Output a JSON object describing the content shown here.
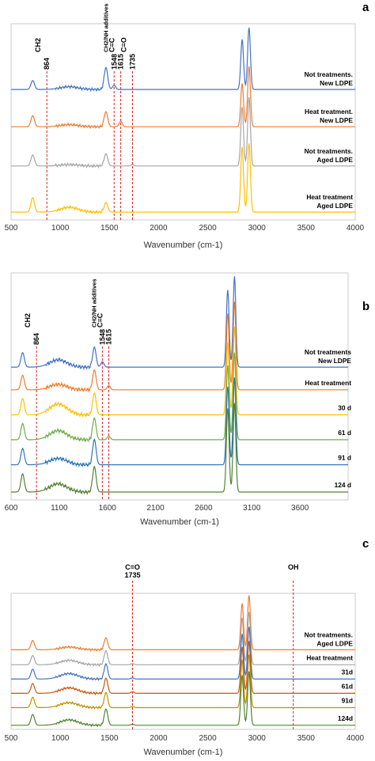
{
  "chart_data": [
    {
      "panel": "a",
      "type": "line",
      "xlabel": "Wavenumber (cm-1)",
      "ylabel": "",
      "xlim": [
        500,
        4000
      ],
      "x_ticks": [
        "500",
        "1000",
        "1500",
        "2000",
        "2500",
        "3000",
        "3500",
        "4000"
      ],
      "grid": false,
      "annotations": [
        {
          "wavenumber": 864,
          "labels": [
            "864",
            "CH2"
          ]
        },
        {
          "wavenumber": 1548,
          "labels": [
            "1548",
            "CH2/NH additives"
          ]
        },
        {
          "wavenumber": 1615,
          "labels": [
            "1615",
            "C=C"
          ]
        },
        {
          "wavenumber": 1735,
          "labels": [
            "1735",
            "C=O"
          ]
        }
      ],
      "series": [
        {
          "name": "Not treatments. New LDPE",
          "label_lines": [
            "Not treatments.",
            "New LDPE"
          ],
          "color": "#4472c4",
          "baseline_frac": 0.665,
          "peaks": [
            [
              720,
              0.13
            ],
            [
              1090,
              0.04
            ],
            [
              1465,
              0.32
            ],
            [
              1548,
              0.06
            ],
            [
              2850,
              0.73
            ],
            [
              2920,
              0.9
            ]
          ]
        },
        {
          "name": "Heat treatment. New LDPE",
          "label_lines": [
            "Heat treatment.",
            "New LDPE"
          ],
          "color": "#ed7d31",
          "baseline_frac": 0.475,
          "peaks": [
            [
              720,
              0.16
            ],
            [
              1090,
              0.03
            ],
            [
              1465,
              0.22
            ],
            [
              1615,
              0.08
            ],
            [
              2850,
              0.63
            ],
            [
              2920,
              0.88
            ]
          ]
        },
        {
          "name": "Not treatments. Aged LDPE",
          "label_lines": [
            "Not treatments.",
            "Aged LDPE"
          ],
          "color": "#a5a5a5",
          "baseline_frac": 0.275,
          "peaks": [
            [
              720,
              0.16
            ],
            [
              1090,
              0.02
            ],
            [
              1465,
              0.18
            ],
            [
              1735,
              0.02
            ],
            [
              2850,
              0.86
            ],
            [
              2920,
              1.0
            ]
          ]
        },
        {
          "name": "Heat treatment Aged LDPE",
          "label_lines": [
            "Heat treatment",
            "Aged LDPE"
          ],
          "color": "#ffc000",
          "baseline_frac": 0.04,
          "peaks": [
            [
              720,
              0.21
            ],
            [
              1090,
              0.07
            ],
            [
              1465,
              0.14
            ],
            [
              2850,
              0.95
            ],
            [
              2920,
              1.0
            ]
          ]
        }
      ]
    },
    {
      "panel": "b",
      "type": "line",
      "xlabel": "Wavenumber (cm-1)",
      "ylabel": "",
      "xlim": [
        600,
        4100
      ],
      "x_ticks": [
        "600",
        "1100",
        "1600",
        "2100",
        "2600",
        "3100",
        "3600"
      ],
      "grid": false,
      "annotations": [
        {
          "wavenumber": 864,
          "labels": [
            "864",
            "CH2"
          ]
        },
        {
          "wavenumber": 1548,
          "labels": [
            "1548",
            "CH2/NH additives"
          ]
        },
        {
          "wavenumber": 1615,
          "labels": [
            "1615",
            "C=C"
          ]
        }
      ],
      "series": [
        {
          "name": "Not treatments New LDPE",
          "label_lines": [
            "Not treatments",
            "New LDPE"
          ],
          "color": "#4472c4",
          "baseline_frac": 0.585,
          "peaks": [
            [
              720,
              0.16
            ],
            [
              1090,
              0.08
            ],
            [
              1465,
              0.22
            ],
            [
              1548,
              0.06
            ],
            [
              2850,
              0.85
            ],
            [
              2920,
              1.0
            ]
          ]
        },
        {
          "name": "Heat treatment",
          "label_lines": [
            "Heat treatment"
          ],
          "color": "#ed7d31",
          "baseline_frac": 0.485,
          "peaks": [
            [
              720,
              0.16
            ],
            [
              1090,
              0.06
            ],
            [
              1465,
              0.22
            ],
            [
              1615,
              0.05
            ],
            [
              2850,
              0.84
            ],
            [
              2920,
              0.97
            ]
          ]
        },
        {
          "name": "30 d",
          "label_lines": [
            "30 d"
          ],
          "color": "#ffc000",
          "baseline_frac": 0.375,
          "peaks": [
            [
              720,
              0.18
            ],
            [
              1090,
              0.12
            ],
            [
              1465,
              0.24
            ],
            [
              2850,
              0.8
            ],
            [
              2920,
              0.97
            ]
          ]
        },
        {
          "name": "61 d",
          "label_lines": [
            "61 d"
          ],
          "color": "#70ad47",
          "baseline_frac": 0.265,
          "peaks": [
            [
              720,
              0.18
            ],
            [
              1090,
              0.1
            ],
            [
              1465,
              0.24
            ],
            [
              1615,
              0.04
            ],
            [
              2850,
              0.82
            ],
            [
              2920,
              0.96
            ]
          ]
        },
        {
          "name": "91 d",
          "label_lines": [
            "91 d"
          ],
          "color": "#2e75b6",
          "baseline_frac": 0.155,
          "peaks": [
            [
              720,
              0.18
            ],
            [
              1090,
              0.07
            ],
            [
              1465,
              0.28
            ],
            [
              2850,
              0.86
            ],
            [
              2920,
              0.96
            ]
          ]
        },
        {
          "name": "124 d",
          "label_lines": [
            "124 d"
          ],
          "color": "#548235",
          "baseline_frac": 0.035,
          "peaks": [
            [
              720,
              0.2
            ],
            [
              1090,
              0.09
            ],
            [
              1465,
              0.28
            ],
            [
              2850,
              0.92
            ],
            [
              2920,
              0.98
            ]
          ]
        }
      ]
    },
    {
      "panel": "c",
      "type": "line",
      "xlabel": "Wavenumber (cm-1)",
      "ylabel": "",
      "xlim": [
        500,
        4000
      ],
      "x_ticks": [
        "500",
        "1000",
        "1500",
        "2000",
        "2500",
        "3000",
        "3500",
        "4000"
      ],
      "grid": false,
      "annotations": [
        {
          "wavenumber": 1735,
          "labels": [
            "C=O",
            "1735"
          ]
        },
        {
          "wavenumber": 3370,
          "labels": [
            "OH"
          ]
        }
      ],
      "series": [
        {
          "name": "Not treatments. Aged LDPE",
          "label_lines": [
            "Not treatments.",
            "Aged LDPE"
          ],
          "color": "#ed7d31",
          "baseline_frac": 0.585,
          "peaks": [
            [
              720,
              0.17
            ],
            [
              1090,
              0.05
            ],
            [
              1465,
              0.22
            ],
            [
              2850,
              0.85
            ],
            [
              2920,
              1.0
            ]
          ]
        },
        {
          "name": "Heat treatment",
          "label_lines": [
            "Heat treatment"
          ],
          "color": "#a5a5a5",
          "baseline_frac": 0.475,
          "peaks": [
            [
              720,
              0.17
            ],
            [
              1090,
              0.08
            ],
            [
              1465,
              0.26
            ],
            [
              1735,
              0.02
            ],
            [
              2850,
              0.86
            ],
            [
              2920,
              0.97
            ]
          ]
        },
        {
          "name": "31d",
          "label_lines": [
            "31d"
          ],
          "color": "#4472c4",
          "baseline_frac": 0.37,
          "peaks": [
            [
              720,
              0.18
            ],
            [
              1090,
              0.1
            ],
            [
              1465,
              0.28
            ],
            [
              1735,
              0.02
            ],
            [
              2850,
              0.83
            ],
            [
              2920,
              0.96
            ]
          ]
        },
        {
          "name": "61d",
          "label_lines": [
            "61d"
          ],
          "color": "#c55a11",
          "baseline_frac": 0.265,
          "peaks": [
            [
              720,
              0.18
            ],
            [
              1090,
              0.1
            ],
            [
              1465,
              0.28
            ],
            [
              1735,
              0.03
            ],
            [
              2850,
              0.85
            ],
            [
              2920,
              0.96
            ]
          ]
        },
        {
          "name": "91d",
          "label_lines": [
            "91d"
          ],
          "color": "#bf9000",
          "baseline_frac": 0.16,
          "peaks": [
            [
              720,
              0.19
            ],
            [
              1090,
              0.09
            ],
            [
              1465,
              0.28
            ],
            [
              1735,
              0.02
            ],
            [
              2850,
              0.88
            ],
            [
              2920,
              0.97
            ]
          ]
        },
        {
          "name": "124d",
          "label_lines": [
            "124d"
          ],
          "color": "#548235",
          "baseline_frac": 0.03,
          "peaks": [
            [
              720,
              0.2
            ],
            [
              1090,
              0.1
            ],
            [
              1465,
              0.3
            ],
            [
              1735,
              0.02
            ],
            [
              2850,
              0.92
            ],
            [
              2920,
              0.99
            ]
          ]
        }
      ]
    }
  ]
}
